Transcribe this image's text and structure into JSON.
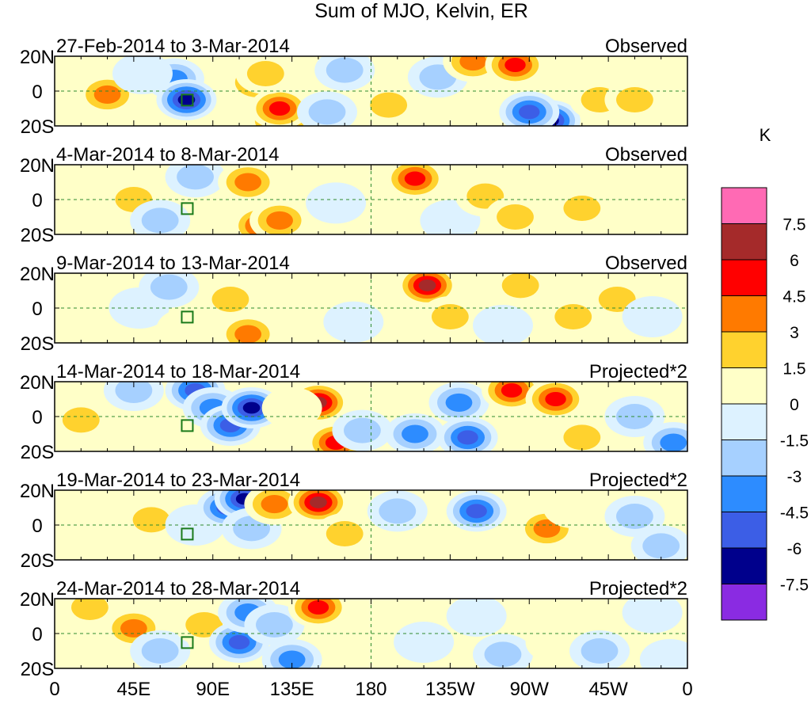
{
  "chart_data": {
    "type": "heatmap",
    "title": "Sum of MJO, Kelvin, ER",
    "units": "K",
    "x_tick_labels": [
      "0",
      "45E",
      "90E",
      "135E",
      "180",
      "135W",
      "90W",
      "45W",
      "0"
    ],
    "y_tick_labels": [
      "20N",
      "0",
      "20S"
    ],
    "xlim": [
      0,
      360
    ],
    "ylim": [
      -20,
      20
    ],
    "panels": [
      {
        "period": "27-Feb-2014 to 3-Mar-2014",
        "status": "Observed",
        "cells": [
          [
            30,
            -2,
            4.5
          ],
          [
            68,
            7,
            -4.5
          ],
          [
            75,
            -5,
            -7.5
          ],
          [
            115,
            5,
            4.5
          ],
          [
            128,
            -17,
            7.5
          ],
          [
            128,
            -10,
            6
          ],
          [
            120,
            10,
            3
          ],
          [
            165,
            12,
            -3
          ],
          [
            190,
            -8,
            3
          ],
          [
            218,
            8,
            -3
          ],
          [
            238,
            17,
            4.5
          ],
          [
            262,
            15,
            6
          ],
          [
            282,
            -17,
            -7.5
          ],
          [
            270,
            -12,
            -6
          ],
          [
            310,
            -5,
            3
          ],
          [
            330,
            -5,
            3
          ],
          [
            155,
            -12,
            -3
          ],
          [
            50,
            10,
            -1.5
          ]
        ]
      },
      {
        "period": "4-Mar-2014 to 8-Mar-2014",
        "status": "Observed",
        "cells": [
          [
            45,
            0,
            3
          ],
          [
            60,
            -12,
            -3
          ],
          [
            80,
            13,
            -3
          ],
          [
            110,
            10,
            4.5
          ],
          [
            118,
            -15,
            6
          ],
          [
            128,
            -12,
            4.5
          ],
          [
            160,
            -2,
            -1.5
          ],
          [
            205,
            12,
            6
          ],
          [
            225,
            -12,
            -1.5
          ],
          [
            245,
            2,
            3
          ],
          [
            262,
            -10,
            3
          ],
          [
            280,
            12,
            1.5
          ],
          [
            300,
            -5,
            3
          ],
          [
            330,
            5,
            1.5
          ]
        ]
      },
      {
        "period": "9-Mar-2014 to 13-Mar-2014",
        "status": "Observed",
        "cells": [
          [
            48,
            0,
            -1.5
          ],
          [
            65,
            12,
            -3
          ],
          [
            75,
            -12,
            1.5
          ],
          [
            100,
            5,
            3
          ],
          [
            110,
            -15,
            4.5
          ],
          [
            170,
            -8,
            -1.5
          ],
          [
            212,
            13,
            7.5
          ],
          [
            225,
            -5,
            3
          ],
          [
            265,
            13,
            3
          ],
          [
            255,
            -10,
            -1.5
          ],
          [
            295,
            -5,
            3
          ],
          [
            320,
            5,
            3
          ],
          [
            340,
            -5,
            -1.5
          ]
        ]
      },
      {
        "period": "14-Mar-2014 to 18-Mar-2014",
        "status": "Projected*2",
        "cells": [
          [
            15,
            -2,
            3
          ],
          [
            45,
            15,
            -3
          ],
          [
            80,
            15,
            -6
          ],
          [
            90,
            5,
            -4.5
          ],
          [
            100,
            -5,
            -6
          ],
          [
            112,
            5,
            -7.5
          ],
          [
            150,
            8,
            7.5
          ],
          [
            160,
            -15,
            6
          ],
          [
            175,
            -8,
            -3
          ],
          [
            205,
            -10,
            -4.5
          ],
          [
            230,
            8,
            -4.5
          ],
          [
            235,
            -12,
            -6
          ],
          [
            260,
            15,
            6
          ],
          [
            285,
            10,
            6
          ],
          [
            300,
            -12,
            3
          ],
          [
            330,
            0,
            -3
          ],
          [
            352,
            -15,
            -4.5
          ],
          [
            135,
            5,
            1.5
          ]
        ]
      },
      {
        "period": "19-Mar-2014 to 23-Mar-2014",
        "status": "Projected*2",
        "cells": [
          [
            30,
            -5,
            1.5
          ],
          [
            55,
            3,
            3
          ],
          [
            80,
            0,
            -1.5
          ],
          [
            98,
            10,
            -6
          ],
          [
            108,
            15,
            -7.5
          ],
          [
            112,
            -2,
            -3
          ],
          [
            125,
            12,
            4.5
          ],
          [
            150,
            13,
            7.5
          ],
          [
            165,
            -5,
            3
          ],
          [
            195,
            8,
            -3
          ],
          [
            240,
            8,
            -6
          ],
          [
            248,
            -15,
            1.5
          ],
          [
            280,
            -2,
            4.5
          ],
          [
            295,
            10,
            1.5
          ],
          [
            330,
            5,
            -3
          ],
          [
            345,
            -12,
            -3
          ]
        ]
      },
      {
        "period": "24-Mar-2014 to 28-Mar-2014",
        "status": "Projected*2",
        "cells": [
          [
            20,
            15,
            3
          ],
          [
            45,
            3,
            4.5
          ],
          [
            60,
            -10,
            -3
          ],
          [
            85,
            5,
            3
          ],
          [
            105,
            -5,
            -6
          ],
          [
            110,
            12,
            -4.5
          ],
          [
            125,
            5,
            -3
          ],
          [
            135,
            -15,
            -4.5
          ],
          [
            150,
            15,
            6
          ],
          [
            180,
            5,
            1.5
          ],
          [
            210,
            -5,
            -1.5
          ],
          [
            240,
            10,
            -1.5
          ],
          [
            255,
            -12,
            -3
          ],
          [
            285,
            -5,
            1.5
          ],
          [
            310,
            -10,
            -3
          ],
          [
            340,
            12,
            -1.5
          ],
          [
            350,
            -15,
            -1.5
          ]
        ]
      }
    ],
    "legend": {
      "title": "K",
      "labels": [
        "7.5",
        "6",
        "4.5",
        "3",
        "1.5",
        "0",
        "-1.5",
        "-3",
        "-4.5",
        "-6",
        "-7.5"
      ],
      "colors": [
        "#ff6ab4",
        "#a52a2a",
        "#ff0000",
        "#ff7a00",
        "#ffd22e",
        "#ffffc8",
        "#ddf2ff",
        "#a6d0ff",
        "#2d8cff",
        "#3c5ee6",
        "#00008c",
        "#8a2be2"
      ]
    }
  }
}
